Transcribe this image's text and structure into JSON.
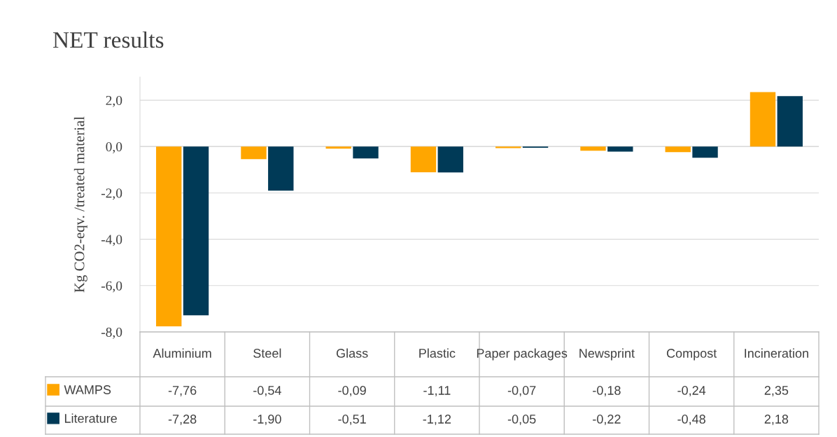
{
  "chart_data": {
    "type": "bar",
    "title": "NET results",
    "ylabel": "Kg CO2-eqv. /treated material",
    "categories": [
      "Aluminium",
      "Steel",
      "Glass",
      "Plastic",
      "Paper packages",
      "Newsprint",
      "Compost",
      "Incineration"
    ],
    "series": [
      {
        "name": "WAMPS",
        "color": "#ffa600",
        "values": [
          -7.76,
          -0.54,
          -0.09,
          -1.11,
          -0.07,
          -0.18,
          -0.24,
          2.35
        ],
        "value_labels": [
          "-7,76",
          "-0,54",
          "-0,09",
          "-1,11",
          "-0,07",
          "-0,18",
          "-0,24",
          "2,35"
        ]
      },
      {
        "name": "Literature",
        "color": "#003a57",
        "values": [
          -7.28,
          -1.9,
          -0.51,
          -1.12,
          -0.05,
          -0.22,
          -0.48,
          2.18
        ],
        "value_labels": [
          "-7,28",
          "-1,90",
          "-0,51",
          "-1,12",
          "-0,05",
          "-0,22",
          "-0,48",
          "2,18"
        ]
      }
    ],
    "ylim": [
      -8,
      3
    ],
    "yticks": [
      {
        "value": -8,
        "label": "-8,0"
      },
      {
        "value": -6,
        "label": "-6,0"
      },
      {
        "value": -4,
        "label": "-4,0"
      },
      {
        "value": -2,
        "label": "-2,0"
      },
      {
        "value": 0,
        "label": "0,0"
      },
      {
        "value": 2,
        "label": "2,0"
      }
    ],
    "grid": "y",
    "legend": "bottom"
  }
}
